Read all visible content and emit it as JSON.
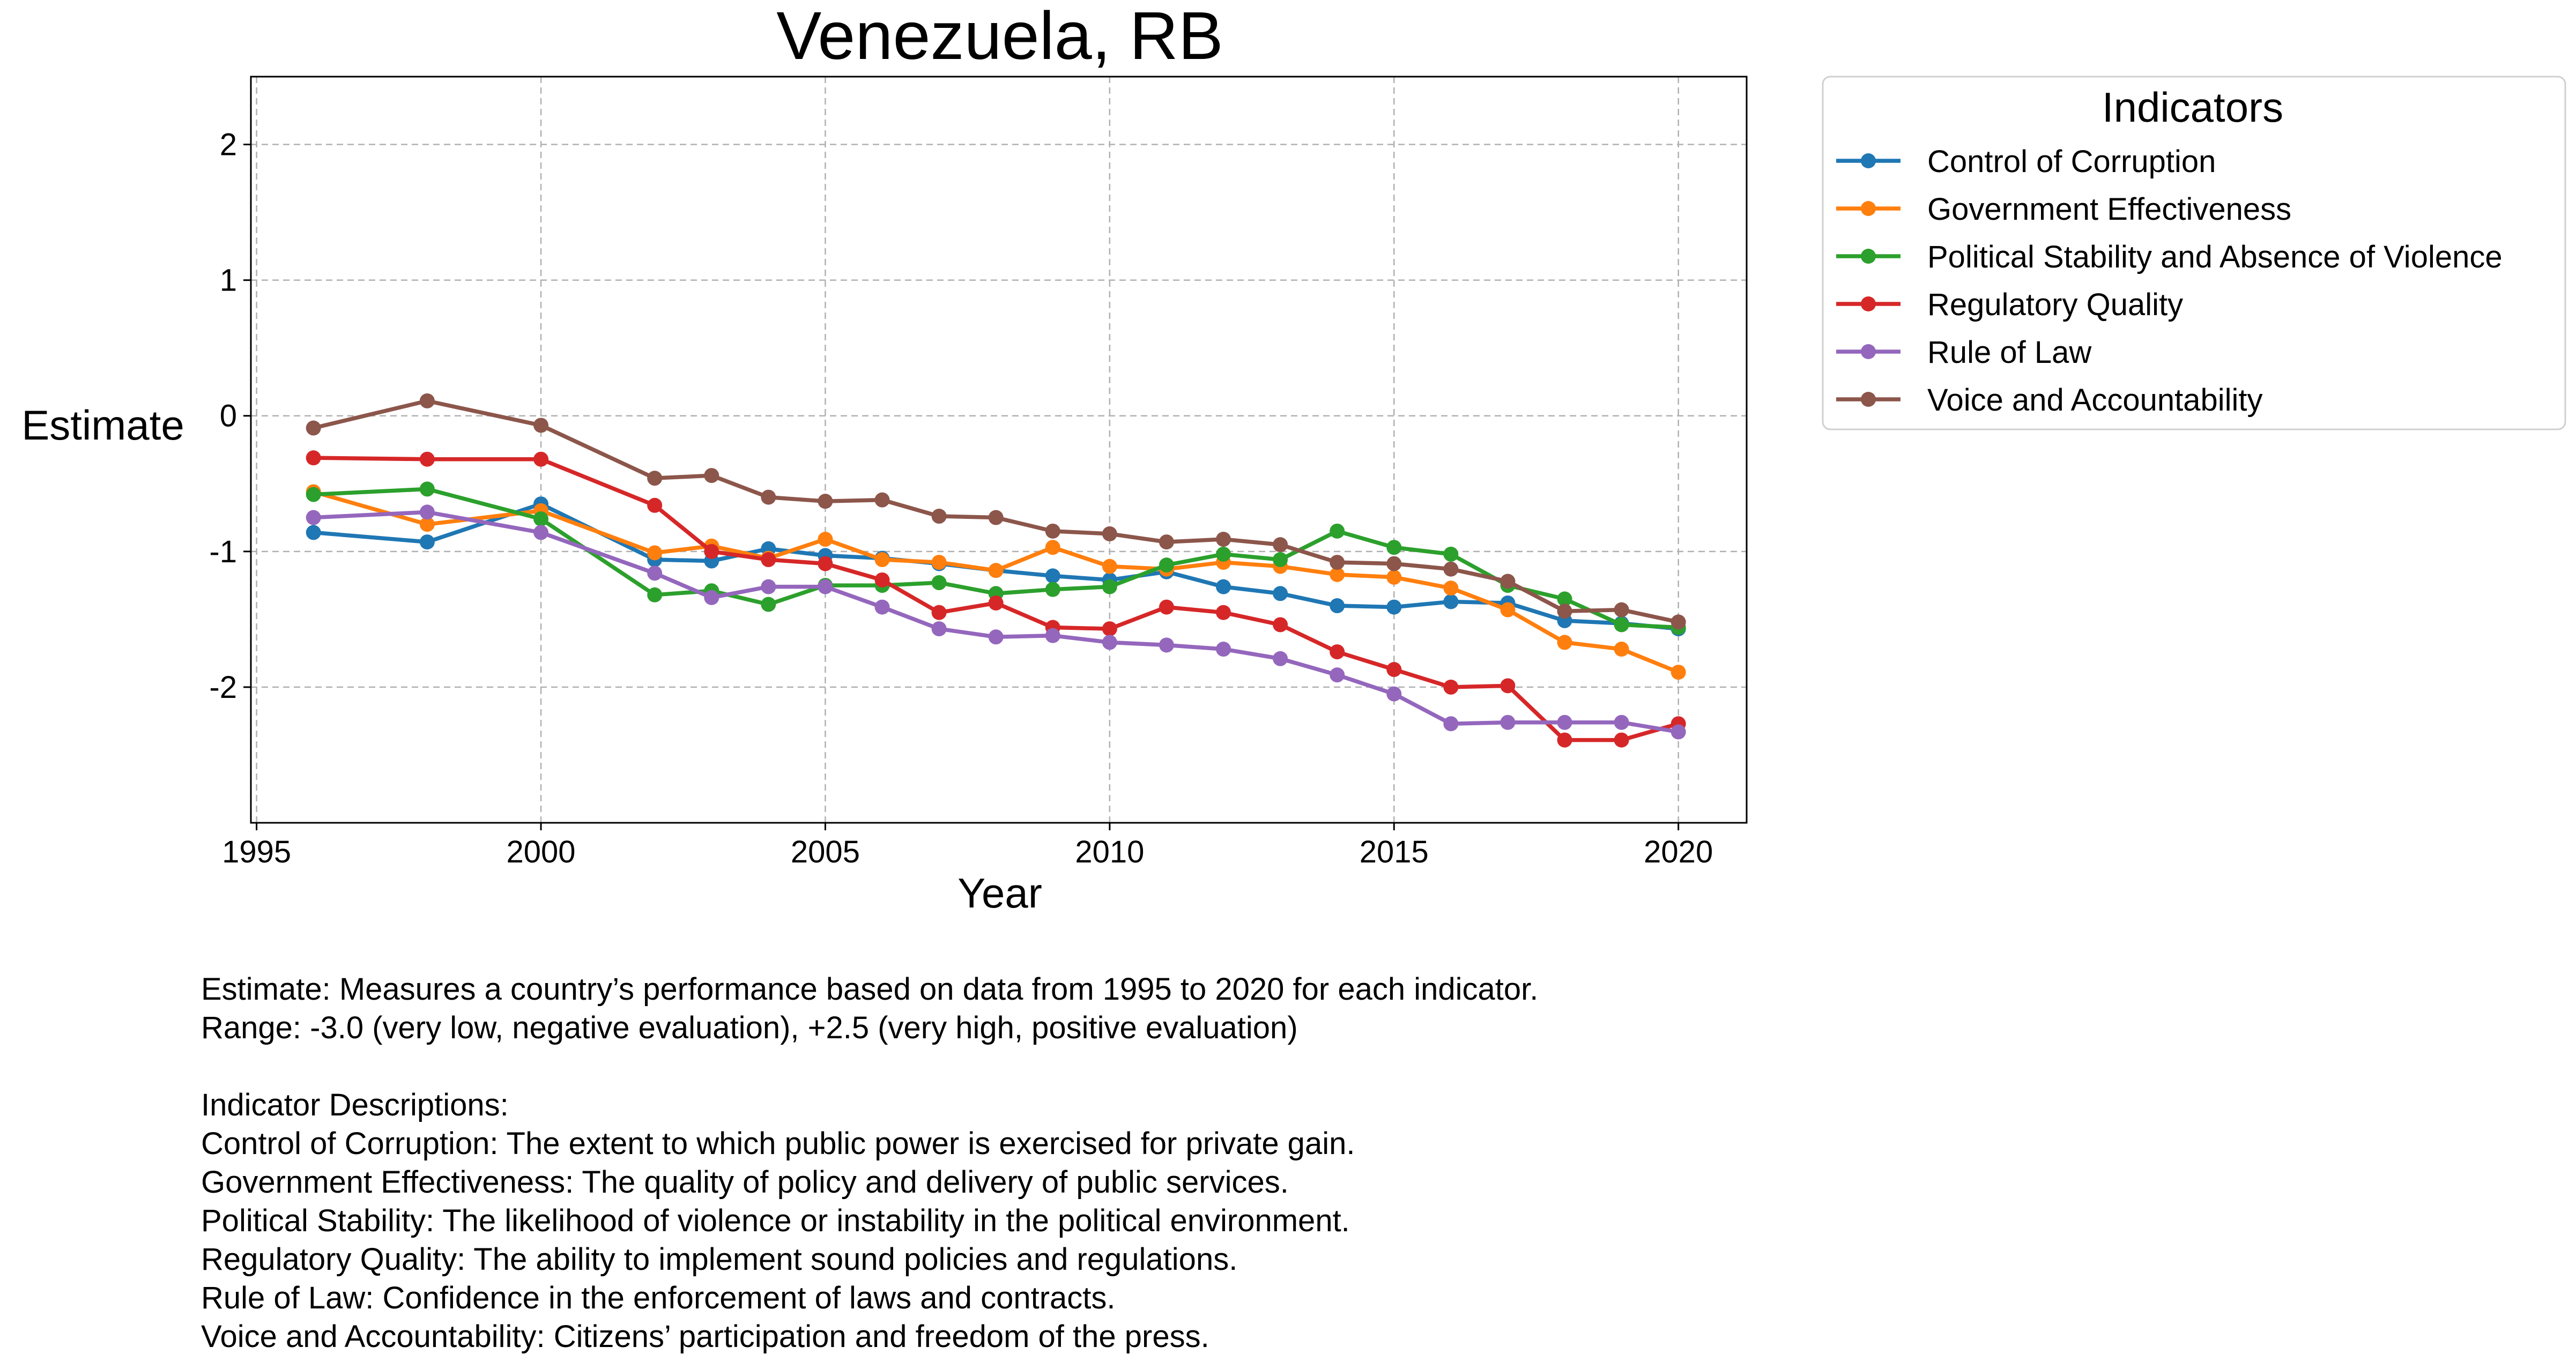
{
  "chart_data": {
    "type": "line",
    "title": "Venezuela, RB",
    "xlabel": "Year",
    "ylabel": "Estimate",
    "xlim": [
      1994.9,
      2021.2
    ],
    "ylim": [
      -3.0,
      2.5
    ],
    "xticks": [
      1995,
      2000,
      2005,
      2010,
      2015,
      2020
    ],
    "yticks": [
      -2,
      -1,
      0,
      1,
      2
    ],
    "grid": true,
    "markers": true,
    "legend": {
      "title": "Indicators",
      "placement": "outside-top-right"
    },
    "x": [
      1996,
      1998,
      2000,
      2002,
      2003,
      2004,
      2005,
      2006,
      2007,
      2008,
      2009,
      2010,
      2011,
      2012,
      2013,
      2014,
      2015,
      2016,
      2017,
      2018,
      2019,
      2020
    ],
    "series": [
      {
        "name": "Control of Corruption",
        "color": "#1f77b4",
        "values": [
          -0.86,
          -0.93,
          -0.65,
          -1.06,
          -1.07,
          -0.98,
          -1.03,
          -1.05,
          -1.09,
          -1.14,
          -1.18,
          -1.21,
          -1.15,
          -1.26,
          -1.31,
          -1.4,
          -1.41,
          -1.37,
          -1.38,
          -1.51,
          -1.53,
          -1.57
        ]
      },
      {
        "name": "Government Effectiveness",
        "color": "#ff7f0e",
        "values": [
          -0.56,
          -0.8,
          -0.7,
          -1.01,
          -0.96,
          -1.05,
          -0.91,
          -1.06,
          -1.08,
          -1.14,
          -0.97,
          -1.11,
          -1.13,
          -1.08,
          -1.11,
          -1.17,
          -1.19,
          -1.27,
          -1.43,
          -1.67,
          -1.72,
          -1.89
        ]
      },
      {
        "name": "Political Stability and Absence of Violence",
        "color": "#2ca02c",
        "values": [
          -0.58,
          -0.54,
          -0.76,
          -1.32,
          -1.29,
          -1.39,
          -1.25,
          -1.25,
          -1.23,
          -1.31,
          -1.28,
          -1.26,
          -1.1,
          -1.02,
          -1.06,
          -0.85,
          -0.97,
          -1.02,
          -1.25,
          -1.35,
          -1.54,
          -1.56
        ]
      },
      {
        "name": "Regulatory Quality",
        "color": "#d62728",
        "values": [
          -0.31,
          -0.32,
          -0.32,
          -0.66,
          -1.0,
          -1.06,
          -1.09,
          -1.21,
          -1.45,
          -1.38,
          -1.56,
          -1.57,
          -1.41,
          -1.45,
          -1.54,
          -1.74,
          -1.87,
          -2.0,
          -1.99,
          -2.39,
          -2.39,
          -2.27
        ]
      },
      {
        "name": "Rule of Law",
        "color": "#9467bd",
        "values": [
          -0.75,
          -0.71,
          -0.86,
          -1.16,
          -1.34,
          -1.26,
          -1.26,
          -1.41,
          -1.57,
          -1.63,
          -1.62,
          -1.67,
          -1.69,
          -1.72,
          -1.79,
          -1.91,
          -2.05,
          -2.27,
          -2.26,
          -2.26,
          -2.26,
          -2.33
        ]
      },
      {
        "name": "Voice and Accountability",
        "color": "#8c564b",
        "values": [
          -0.09,
          0.11,
          -0.07,
          -0.46,
          -0.44,
          -0.6,
          -0.63,
          -0.62,
          -0.74,
          -0.75,
          -0.85,
          -0.87,
          -0.93,
          -0.91,
          -0.95,
          -1.08,
          -1.09,
          -1.13,
          -1.22,
          -1.44,
          -1.43,
          -1.52
        ]
      }
    ]
  },
  "footnote": {
    "lines": [
      "Estimate: Measures a country’s performance based on data from 1995 to 2020 for each indicator.",
      "Range: -3.0 (very low, negative evaluation), +2.5 (very high, positive evaluation)",
      "",
      "Indicator Descriptions:",
      "Control of Corruption: The extent to which public power is exercised for private gain.",
      "Government Effectiveness: The quality of policy and delivery of public services.",
      "Political Stability: The likelihood of violence or instability in the political environment.",
      "Regulatory Quality: The ability to implement sound policies and regulations.",
      "Rule of Law: Confidence in the enforcement of laws and contracts.",
      "Voice and Accountability: Citizens’ participation and freedom of the press."
    ]
  }
}
